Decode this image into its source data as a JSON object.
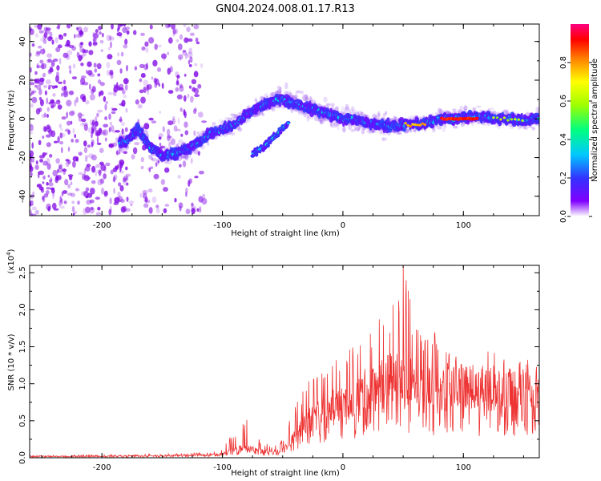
{
  "figure_title": "GN04.2024.008.01.17.R13",
  "colorbar": {
    "label": "Normalized spectral amplitude",
    "ticks": [
      "0.0",
      "0.2",
      "0.4",
      "0.6",
      "0.8"
    ],
    "range": [
      0,
      1
    ]
  },
  "scale_note": {
    "base": "(x10",
    "exp": "4",
    "close": ")"
  },
  "chart_data": [
    {
      "type": "heatmap",
      "name": "spectrogram",
      "title": "",
      "xlabel": "Height of straight line (km)",
      "ylabel": "Frequency (Hz)",
      "xlim": [
        -260,
        163
      ],
      "ylim": [
        -50,
        49
      ],
      "xticks": [
        "-200",
        "-100",
        "0",
        "100"
      ],
      "yticks": [
        "-40",
        "-20",
        "0",
        "20",
        "40"
      ],
      "ridge": [
        {
          "x": -180,
          "y": -12
        },
        {
          "x": -170,
          "y": -5
        },
        {
          "x": -160,
          "y": -15
        },
        {
          "x": -150,
          "y": -19
        },
        {
          "x": -140,
          "y": -18
        },
        {
          "x": -130,
          "y": -16
        },
        {
          "x": -120,
          "y": -12
        },
        {
          "x": -110,
          "y": -8
        },
        {
          "x": -100,
          "y": -5
        },
        {
          "x": -90,
          "y": -3
        },
        {
          "x": -80,
          "y": 2
        },
        {
          "x": -70,
          "y": 6
        },
        {
          "x": -60,
          "y": 9
        },
        {
          "x": -50,
          "y": 10
        },
        {
          "x": -40,
          "y": 8
        },
        {
          "x": -30,
          "y": 6
        },
        {
          "x": -20,
          "y": 4
        },
        {
          "x": -10,
          "y": 2
        },
        {
          "x": 0,
          "y": 0
        },
        {
          "x": 10,
          "y": 0
        },
        {
          "x": 20,
          "y": -2
        },
        {
          "x": 30,
          "y": -3
        },
        {
          "x": 40,
          "y": -4
        },
        {
          "x": 50,
          "y": -3
        },
        {
          "x": 60,
          "y": -3
        },
        {
          "x": 70,
          "y": -2
        },
        {
          "x": 80,
          "y": 0
        },
        {
          "x": 90,
          "y": 0
        },
        {
          "x": 100,
          "y": 1
        },
        {
          "x": 110,
          "y": 1
        },
        {
          "x": 120,
          "y": 1
        },
        {
          "x": 130,
          "y": 0
        },
        {
          "x": 140,
          "y": 0
        },
        {
          "x": 150,
          "y": -1
        },
        {
          "x": 160,
          "y": 0
        }
      ],
      "secondary_branch": [
        {
          "x": -75,
          "y": -18
        },
        {
          "x": -65,
          "y": -14
        },
        {
          "x": -55,
          "y": -8
        },
        {
          "x": -45,
          "y": -2
        }
      ],
      "high_amplitude_segment": {
        "x": [
          82,
          112
        ],
        "y": 0,
        "value": 0.95
      },
      "noise_region_x": [
        -260,
        -115
      ]
    },
    {
      "type": "line",
      "name": "snr",
      "title": "",
      "xlabel": "Height of straight line (km)",
      "ylabel": "SNR (10 * v/v)",
      "xlim": [
        -260,
        163
      ],
      "ylim": [
        0,
        2.6
      ],
      "xticks": [
        "-200",
        "-100",
        "0",
        "100"
      ],
      "yticks": [
        "0.0",
        "0.5",
        "1.0",
        "1.5",
        "2.0",
        "2.5"
      ],
      "color": "#ee3333",
      "envelope": [
        {
          "x": -260,
          "mean": 0.02,
          "peak": 0.03
        },
        {
          "x": -200,
          "mean": 0.02,
          "peak": 0.04
        },
        {
          "x": -150,
          "mean": 0.03,
          "peak": 0.05
        },
        {
          "x": -110,
          "mean": 0.04,
          "peak": 0.07
        },
        {
          "x": -100,
          "mean": 0.05,
          "peak": 0.12
        },
        {
          "x": -90,
          "mean": 0.12,
          "peak": 0.38
        },
        {
          "x": -80,
          "mean": 0.15,
          "peak": 0.55
        },
        {
          "x": -70,
          "mean": 0.1,
          "peak": 0.28
        },
        {
          "x": -60,
          "mean": 0.07,
          "peak": 0.15
        },
        {
          "x": -50,
          "mean": 0.1,
          "peak": 0.25
        },
        {
          "x": -40,
          "mean": 0.3,
          "peak": 0.7
        },
        {
          "x": -30,
          "mean": 0.5,
          "peak": 1.0
        },
        {
          "x": -20,
          "mean": 0.6,
          "peak": 1.2
        },
        {
          "x": -10,
          "mean": 0.7,
          "peak": 1.4
        },
        {
          "x": 0,
          "mean": 0.75,
          "peak": 1.45
        },
        {
          "x": 10,
          "mean": 0.8,
          "peak": 1.5
        },
        {
          "x": 20,
          "mean": 0.95,
          "peak": 1.75
        },
        {
          "x": 30,
          "mean": 1.05,
          "peak": 1.9
        },
        {
          "x": 40,
          "mean": 1.1,
          "peak": 2.1
        },
        {
          "x": 50,
          "mean": 1.15,
          "peak": 2.6
        },
        {
          "x": 60,
          "mean": 1.05,
          "peak": 1.8
        },
        {
          "x": 70,
          "mean": 1.0,
          "peak": 1.6
        },
        {
          "x": 80,
          "mean": 0.95,
          "peak": 1.75
        },
        {
          "x": 90,
          "mean": 1.0,
          "peak": 1.45
        },
        {
          "x": 100,
          "mean": 0.95,
          "peak": 1.35
        },
        {
          "x": 110,
          "mean": 0.95,
          "peak": 1.3
        },
        {
          "x": 120,
          "mean": 1.0,
          "peak": 1.55
        },
        {
          "x": 130,
          "mean": 0.95,
          "peak": 1.4
        },
        {
          "x": 140,
          "mean": 0.95,
          "peak": 1.3
        },
        {
          "x": 150,
          "mean": 0.95,
          "peak": 1.35
        },
        {
          "x": 160,
          "mean": 0.95,
          "peak": 1.5
        }
      ]
    }
  ]
}
